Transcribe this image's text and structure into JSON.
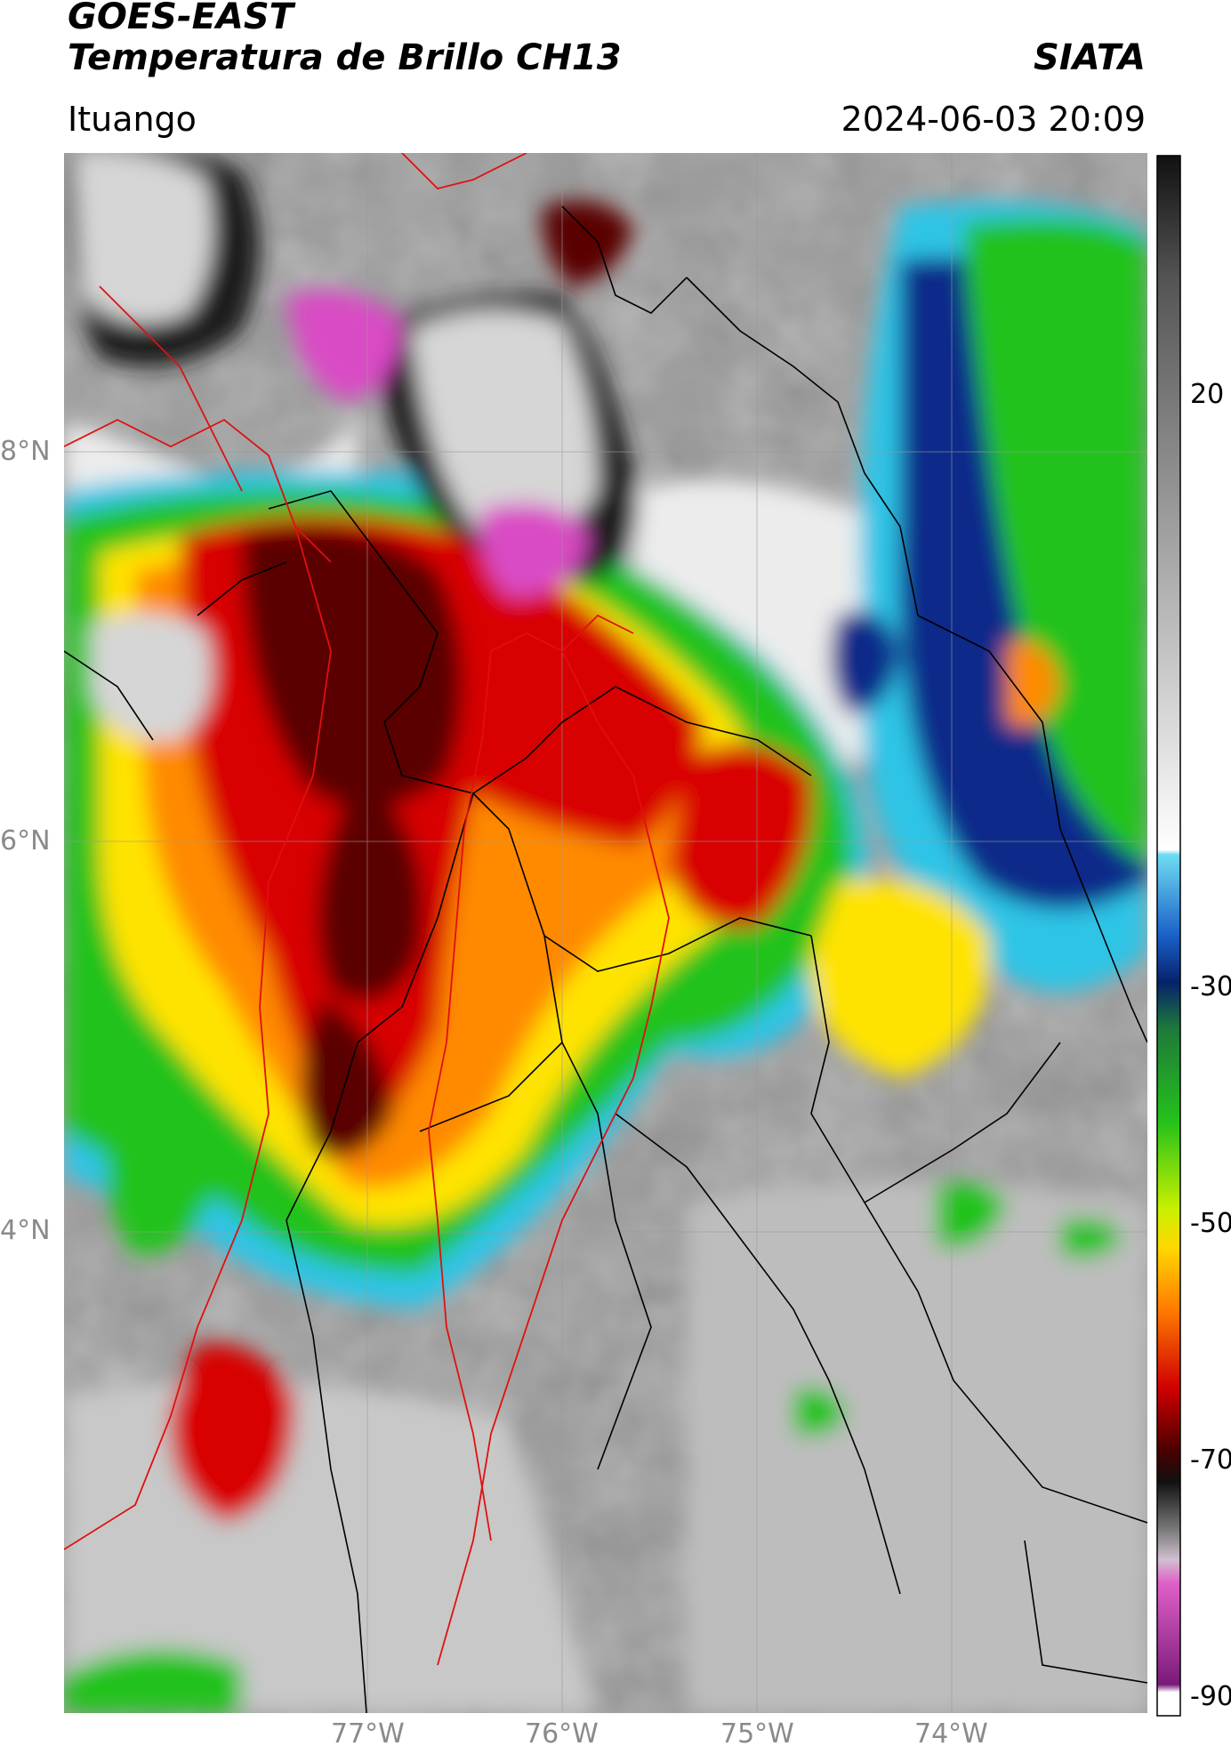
{
  "header": {
    "satellite": "GOES-EAST",
    "product": "Temperatura de Brillo CH13",
    "organization": "SIATA",
    "region": "Ituango",
    "timestamp": "2024-06-03 20:09"
  },
  "map": {
    "lat_labels": [
      "8°N",
      "6°N",
      "4°N"
    ],
    "lon_labels": [
      "77°W",
      "76°W",
      "75°W",
      "74°W"
    ],
    "basemap": "Colombia department and municipality borders with red outlines",
    "gridlines": true
  },
  "colorbar": {
    "ticks": [
      "20",
      "-30",
      "-50",
      "-70",
      "-90"
    ],
    "palette_colors": {
      "warm_grey": "#8c8c8c",
      "white": "#f2f2f2",
      "cyan": "#2ec4e6",
      "blue": "#0a2a8a",
      "green": "#23c21f",
      "yellow": "#ffe300",
      "orange": "#ff8a00",
      "red": "#d80000",
      "dark_red": "#5a0000",
      "black": "#111111",
      "magenta": "#d94cc4",
      "purple": "#8a1a8a"
    }
  }
}
